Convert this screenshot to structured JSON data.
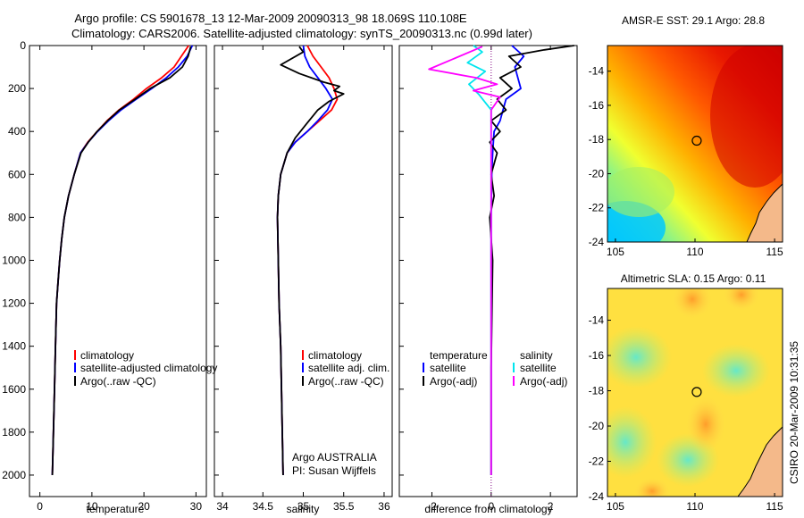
{
  "header": {
    "title_line1": "Argo profile: CS 5901678_13 12-Mar-2009 20090313_98 18.069S 110.108E",
    "title_line2": "Climatology: CARS2006. Satellite-adjusted climatology: synTS_20090313.nc (0.99d later)"
  },
  "colors": {
    "climatology": "#ff0000",
    "satellite": "#0000ff",
    "argo": "#000000",
    "sal_satellite": "#00e5ee",
    "sal_argo": "#ff00ff"
  },
  "chart_data": [
    {
      "type": "line",
      "id": "temperature",
      "xlabel": "temperature",
      "ylabel": "",
      "xlim": [
        -2,
        32
      ],
      "ylim": [
        2100,
        0
      ],
      "xticks": [
        0,
        10,
        20,
        30
      ],
      "yticks": [
        0,
        200,
        400,
        600,
        800,
        1000,
        1200,
        1400,
        1600,
        1800,
        2000
      ],
      "legend": [
        "climatology",
        "satellite-adjusted climatology",
        "Argo(..raw -QC)"
      ],
      "series": [
        {
          "name": "climatology",
          "color": "#ff0000",
          "x": [
            28.6,
            27.2,
            25.8,
            23.4,
            20.5,
            18.0,
            15.2,
            12.9,
            11.0,
            9.2,
            7.8,
            6.6,
            5.5,
            4.7,
            4.2,
            3.8,
            3.5,
            3.2,
            3.0,
            2.8,
            2.6,
            2.5,
            2.4
          ],
          "y": [
            0,
            50,
            100,
            150,
            200,
            250,
            300,
            350,
            400,
            450,
            500,
            600,
            700,
            800,
            900,
            1000,
            1100,
            1200,
            1400,
            1600,
            1800,
            1900,
            2000
          ]
        },
        {
          "name": "satellite-adjusted climatology",
          "color": "#0000ff",
          "x": [
            29.3,
            28.3,
            26.6,
            24.3,
            21.5,
            18.5,
            15.6,
            13.2,
            11.1,
            9.3,
            7.8,
            6.6,
            5.5,
            4.7,
            4.2,
            3.8,
            3.5,
            3.2,
            3.0,
            2.8,
            2.6,
            2.5,
            2.4
          ],
          "y": [
            0,
            50,
            100,
            150,
            200,
            250,
            300,
            350,
            400,
            450,
            500,
            600,
            700,
            800,
            900,
            1000,
            1100,
            1200,
            1400,
            1600,
            1800,
            1900,
            2000
          ]
        },
        {
          "name": "Argo(..raw -QC)",
          "color": "#000000",
          "x": [
            29.0,
            28.5,
            27.4,
            25.0,
            21.2,
            18.3,
            15.3,
            13.0,
            11.0,
            9.3,
            7.9,
            6.6,
            5.5,
            4.7,
            4.2,
            3.8,
            3.5,
            3.2,
            3.0,
            2.8,
            2.6,
            2.5,
            2.4
          ],
          "y": [
            5,
            50,
            100,
            150,
            200,
            250,
            300,
            350,
            400,
            450,
            500,
            600,
            700,
            800,
            900,
            1000,
            1100,
            1200,
            1400,
            1600,
            1800,
            1900,
            2000
          ]
        }
      ]
    },
    {
      "type": "line",
      "id": "salinity",
      "xlabel": "salinity",
      "xlim": [
        33.9,
        36.1
      ],
      "ylim": [
        2100,
        0
      ],
      "xticks": [
        34,
        34.5,
        35,
        35.5,
        36
      ],
      "legend": [
        "climatology",
        "satellite adj. clim.",
        "Argo(..raw -QC)"
      ],
      "annotations": [
        "Argo AUSTRALIA",
        "PI: Susan Wijffels"
      ],
      "series": [
        {
          "name": "climatology",
          "color": "#ff0000",
          "x": [
            35.05,
            35.12,
            35.22,
            35.32,
            35.38,
            35.42,
            35.35,
            35.2,
            35.05,
            34.9,
            34.8,
            34.72,
            34.69,
            34.68,
            34.69,
            34.7,
            34.72,
            34.73,
            34.74,
            34.75
          ],
          "y": [
            0,
            50,
            100,
            150,
            200,
            250,
            300,
            350,
            400,
            450,
            500,
            600,
            700,
            800,
            1000,
            1200,
            1400,
            1600,
            1800,
            2000
          ]
        },
        {
          "name": "satellite adj. clim.",
          "color": "#0000ff",
          "x": [
            35.0,
            35.02,
            35.08,
            35.18,
            35.28,
            35.36,
            35.3,
            35.18,
            35.05,
            34.9,
            34.8,
            34.72,
            34.69,
            34.68,
            34.69,
            34.7,
            34.72,
            34.73,
            34.74,
            34.75
          ],
          "y": [
            0,
            50,
            100,
            150,
            200,
            250,
            300,
            350,
            400,
            450,
            500,
            600,
            700,
            800,
            1000,
            1200,
            1400,
            1600,
            1800,
            2000
          ]
        },
        {
          "name": "Argo(..raw -QC)",
          "color": "#000000",
          "x": [
            34.95,
            35.0,
            34.72,
            34.95,
            35.25,
            35.45,
            35.38,
            35.5,
            35.32,
            35.18,
            35.05,
            34.9,
            34.8,
            34.72,
            34.69,
            34.68,
            34.69,
            34.7,
            34.72,
            34.73,
            34.74,
            34.75
          ],
          "y": [
            5,
            30,
            90,
            130,
            170,
            190,
            210,
            225,
            260,
            300,
            360,
            430,
            500,
            600,
            700,
            800,
            1000,
            1200,
            1400,
            1600,
            1800,
            2000
          ]
        }
      ]
    },
    {
      "type": "line",
      "id": "difference",
      "xlabel": "difference from climatology",
      "xlim": [
        -3.1,
        2.9
      ],
      "ylim": [
        2100,
        0
      ],
      "xticks": [
        -2,
        0,
        2
      ],
      "legend_temperature_title": "temperature",
      "legend_salinity_title": "salinity",
      "legend_temperature": [
        "satellite",
        "Argo(-adj)"
      ],
      "legend_salinity": [
        "satellite",
        "Argo(-adj)"
      ],
      "series": [
        {
          "name": "temperature satellite",
          "color": "#0000ff",
          "x": [
            0.7,
            1.1,
            0.8,
            0.9,
            1.0,
            0.5,
            0.4,
            0.3,
            0.1,
            0.05,
            0.02,
            0.0,
            0.0,
            0.0,
            0.0
          ],
          "y": [
            0,
            50,
            100,
            150,
            200,
            250,
            300,
            350,
            400,
            500,
            600,
            800,
            1000,
            1500,
            2000
          ]
        },
        {
          "name": "temperature Argo(-adj)",
          "color": "#000000",
          "x": [
            2.8,
            1.8,
            0.6,
            1.0,
            0.3,
            0.7,
            0.2,
            0.5,
            0.0,
            0.3,
            -0.05,
            0.2,
            0.0,
            0.1,
            -0.05,
            0.05,
            0.0,
            0.0
          ],
          "y": [
            0,
            20,
            50,
            100,
            150,
            200,
            250,
            300,
            350,
            400,
            450,
            500,
            600,
            700,
            800,
            1000,
            1500,
            2000
          ]
        },
        {
          "name": "salinity satellite",
          "color": "#00e5ee",
          "x": [
            -0.6,
            -0.3,
            -0.8,
            -0.2,
            -0.75,
            -0.4,
            0.0,
            0.0,
            0.0,
            0.0,
            0.0
          ],
          "y": [
            0,
            30,
            80,
            120,
            180,
            230,
            300,
            400,
            600,
            1000,
            2000
          ]
        },
        {
          "name": "salinity Argo(-adj)",
          "color": "#ff00ff",
          "x": [
            -0.3,
            -2.1,
            -0.5,
            0.2,
            -0.6,
            0.3,
            0.0,
            0.0,
            0.0,
            0.0
          ],
          "y": [
            5,
            110,
            150,
            180,
            210,
            240,
            300,
            500,
            1000,
            2000
          ]
        }
      ]
    }
  ],
  "maps": [
    {
      "title": "AMSR-E SST: 29.1 Argo: 28.8",
      "xticks": [
        "105",
        "110",
        "115"
      ],
      "yticks": [
        "-14",
        "-16",
        "-18",
        "-20",
        "-22",
        "-24"
      ],
      "lon": 110.108,
      "lat": -18.069
    },
    {
      "title": "Altimetric SLA: 0.15 Argo: 0.11",
      "xticks": [
        "105",
        "110",
        "115"
      ],
      "yticks": [
        "-14",
        "-16",
        "-18",
        "-20",
        "-22",
        "-24"
      ],
      "lon": 110.108,
      "lat": -18.069
    }
  ],
  "footer": {
    "stamp": "CSIRO 20-Mar-2009 10:31:35"
  }
}
